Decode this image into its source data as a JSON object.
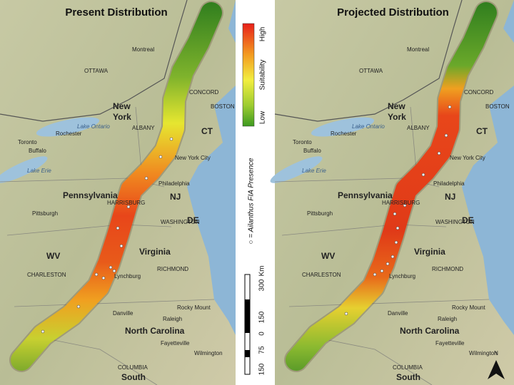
{
  "panels": [
    {
      "title": "Present Distribution"
    },
    {
      "title": "Projected Distribution",
      "north": "N"
    }
  ],
  "map_labels": [
    "OTTAWA",
    "Montreal",
    "New",
    "York",
    "ALBANY",
    "CONCORD",
    "BOSTON",
    "Lake Ontario",
    "Toronto",
    "Rochester",
    "Buffalo",
    "Lake Erie",
    "CT",
    "New York City",
    "Pennsylvania",
    "Philadelphia",
    "NJ",
    "Pittsburgh",
    "HARRISBURG",
    "WASHINGTON",
    "DE",
    "WV",
    "Virginia",
    "RICHMOND",
    "CHARLESTON",
    "Lynchburg",
    "Danville",
    "Rocky Mount",
    "Raleigh",
    "North Carolina",
    "Fayetteville",
    "Wilmington",
    "COLUMBIA",
    "South"
  ],
  "legend": {
    "high": "High",
    "axis": "Suitability",
    "low": "Low",
    "presence": "○ = Ailanthus FIA Presence"
  },
  "scale": {
    "unit": "Km",
    "ticks": [
      "300",
      "150",
      "0",
      "75",
      "150"
    ]
  }
}
